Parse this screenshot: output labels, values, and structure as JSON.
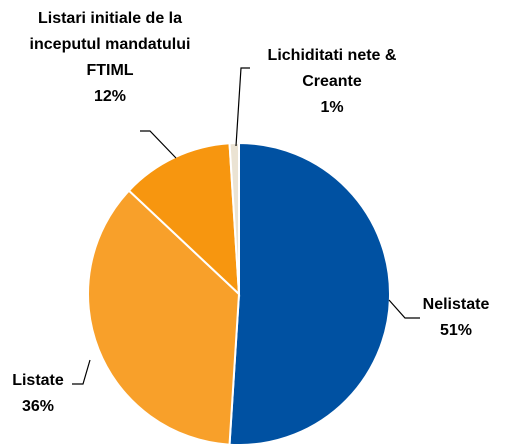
{
  "chart_data": {
    "type": "pie",
    "categories": [
      "Nelistate",
      "Listate",
      "Listari initiale de la inceputul mandatului FTIML",
      "Lichiditati nete & Creante"
    ],
    "values": [
      51,
      36,
      12,
      1
    ],
    "value_labels": [
      "51%",
      "36%",
      "12%",
      "1%"
    ],
    "colors": [
      "#0051a2",
      "#f8a02a",
      "#f7960f",
      "#ebe3d3"
    ]
  }
}
